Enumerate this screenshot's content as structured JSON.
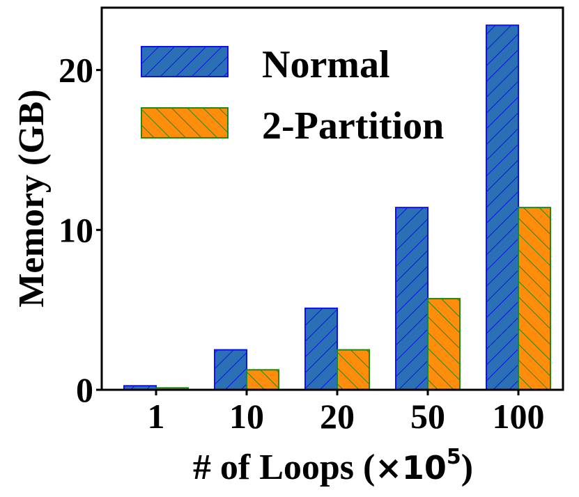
{
  "chart_data": {
    "type": "bar",
    "categories": [
      "1",
      "10",
      "20",
      "50",
      "100"
    ],
    "series": [
      {
        "name": "Normal",
        "values": [
          0.25,
          2.5,
          5.1,
          11.4,
          22.8
        ],
        "color": "#2b6fb4",
        "edge": "#1010ee"
      },
      {
        "name": "2-Partition",
        "values": [
          0.12,
          1.25,
          2.5,
          5.7,
          11.4
        ],
        "color": "#ff8c0a",
        "edge": "#1a8a1a"
      }
    ],
    "title": "",
    "xlabel_main": "# of Loops (",
    "xlabel_mult": "×10",
    "xlabel_exp": "5",
    "xlabel_close": ")",
    "ylabel": "Memory (GB)",
    "yticks": [
      0,
      10,
      20
    ],
    "ylim": [
      0,
      23.9
    ],
    "legend_position": "top-left"
  }
}
